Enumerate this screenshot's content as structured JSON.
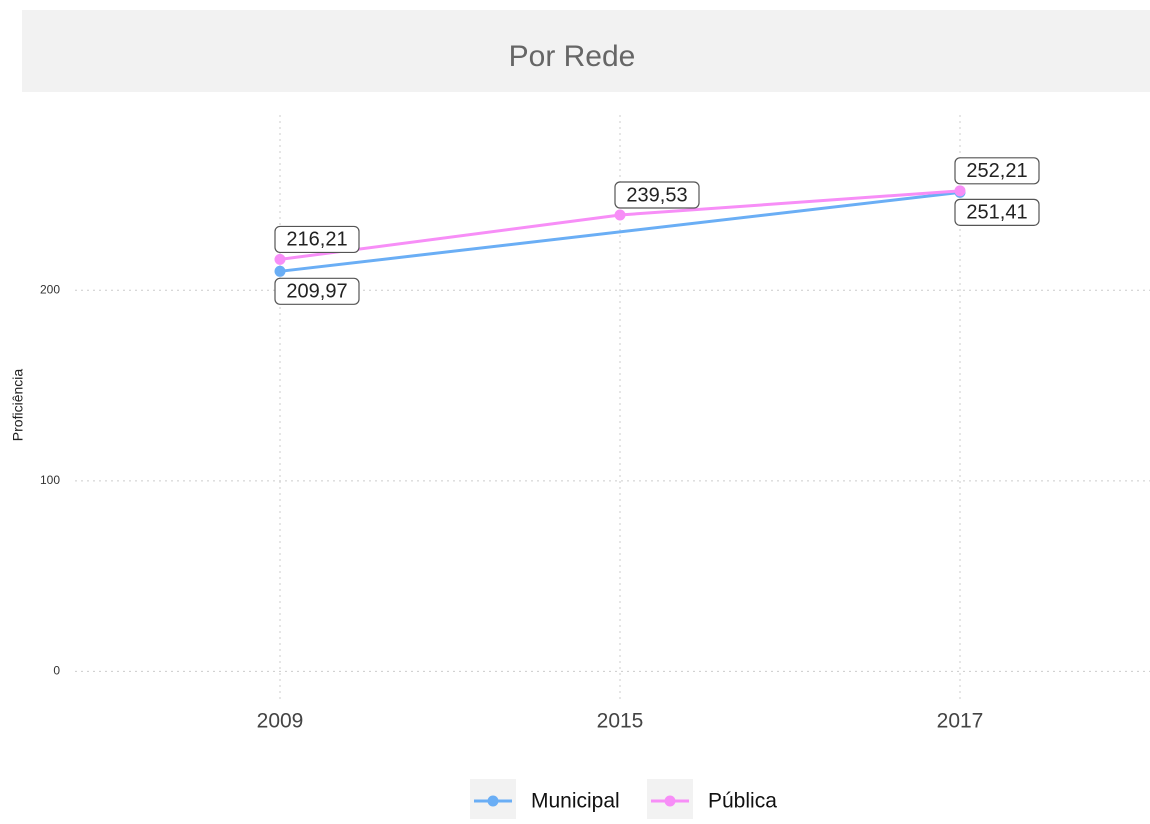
{
  "chart_data": {
    "type": "line",
    "title": "Por Rede",
    "y_label": "Proficiência",
    "categories": [
      "2009",
      "2015",
      "2017"
    ],
    "series": [
      {
        "name": "Municipal",
        "color": "#6aaef5",
        "values": [
          209.97,
          null,
          251.41
        ],
        "value_labels": [
          "209,97",
          null,
          "251,41"
        ]
      },
      {
        "name": "Pública",
        "color": "#f78ef7",
        "values": [
          216.21,
          239.53,
          252.21
        ],
        "value_labels": [
          "216,21",
          "239,53",
          "252,21"
        ]
      }
    ],
    "ylim": [
      -15,
      292
    ],
    "yticks": [
      0,
      100,
      200
    ],
    "grid": true,
    "legend": "bottom"
  }
}
